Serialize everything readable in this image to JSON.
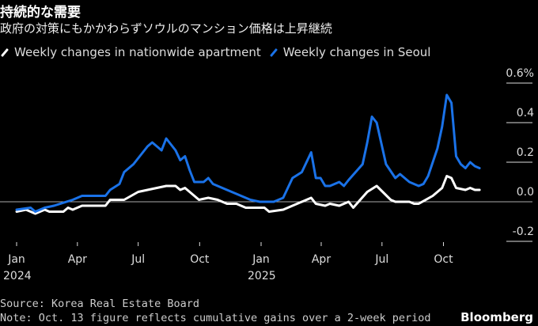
{
  "header": {
    "title": "持続的な需要",
    "subtitle": "政府の対策にもかかわらずソウルのマンション価格は上昇継続"
  },
  "footer": {
    "source": "Source: Korea Real Estate Board",
    "note": "Note: Oct. 13 figure reflects cumulative gains over a 2-week period",
    "brand": "Bloomberg"
  },
  "chart_data": {
    "type": "line",
    "title": "",
    "xlabel": "",
    "ylabel": "",
    "ylim": [
      -0.2,
      0.6
    ],
    "y_ticks": [
      "0.6%",
      "0.4",
      "0.2",
      "0.0",
      "-0.2"
    ],
    "y_tick_values": [
      0.6,
      0.4,
      0.2,
      0.0,
      -0.2
    ],
    "x_ticks": [
      {
        "date": "2024-01-01",
        "label": "Jan",
        "year": "2024"
      },
      {
        "date": "2024-04-01",
        "label": "Apr",
        "year": ""
      },
      {
        "date": "2024-07-01",
        "label": "Jul",
        "year": ""
      },
      {
        "date": "2024-10-01",
        "label": "Oct",
        "year": ""
      },
      {
        "date": "2025-01-01",
        "label": "Jan",
        "year": "2025"
      },
      {
        "date": "2025-04-01",
        "label": "Apr",
        "year": ""
      },
      {
        "date": "2025-07-01",
        "label": "Jul",
        "year": ""
      },
      {
        "date": "2025-10-01",
        "label": "Oct",
        "year": ""
      }
    ],
    "legend_placement": "top-left",
    "grid": false,
    "series": [
      {
        "name": "Weekly changes in nationwide apartment",
        "color": "#ffffff",
        "points": [
          [
            "2024-01-01",
            -0.05
          ],
          [
            "2024-01-15",
            -0.04
          ],
          [
            "2024-01-29",
            -0.06
          ],
          [
            "2024-02-12",
            -0.04
          ],
          [
            "2024-02-19",
            -0.05
          ],
          [
            "2024-03-11",
            -0.05
          ],
          [
            "2024-03-18",
            -0.03
          ],
          [
            "2024-03-25",
            -0.04
          ],
          [
            "2024-04-08",
            -0.02
          ],
          [
            "2024-05-13",
            -0.02
          ],
          [
            "2024-05-20",
            0.01
          ],
          [
            "2024-06-10",
            0.01
          ],
          [
            "2024-07-01",
            0.05
          ],
          [
            "2024-07-29",
            0.07
          ],
          [
            "2024-08-12",
            0.08
          ],
          [
            "2024-08-26",
            0.08
          ],
          [
            "2024-09-02",
            0.06
          ],
          [
            "2024-09-09",
            0.07
          ],
          [
            "2024-09-16",
            0.05
          ],
          [
            "2024-09-30",
            0.01
          ],
          [
            "2024-10-14",
            0.02
          ],
          [
            "2024-10-28",
            0.01
          ],
          [
            "2024-11-11",
            -0.01
          ],
          [
            "2024-11-25",
            -0.01
          ],
          [
            "2024-12-09",
            -0.03
          ],
          [
            "2025-01-06",
            -0.03
          ],
          [
            "2025-01-13",
            -0.05
          ],
          [
            "2025-02-03",
            -0.04
          ],
          [
            "2025-03-10",
            0.01
          ],
          [
            "2025-03-17",
            0.02
          ],
          [
            "2025-03-24",
            -0.01
          ],
          [
            "2025-04-07",
            -0.02
          ],
          [
            "2025-04-14",
            -0.01
          ],
          [
            "2025-04-28",
            -0.02
          ],
          [
            "2025-05-12",
            0.0
          ],
          [
            "2025-05-19",
            -0.03
          ],
          [
            "2025-06-09",
            0.05
          ],
          [
            "2025-06-23",
            0.08
          ],
          [
            "2025-07-14",
            0.01
          ],
          [
            "2025-07-21",
            0.0
          ],
          [
            "2025-08-11",
            0.0
          ],
          [
            "2025-08-18",
            -0.01
          ],
          [
            "2025-08-25",
            -0.01
          ],
          [
            "2025-09-15",
            0.03
          ],
          [
            "2025-09-29",
            0.07
          ],
          [
            "2025-10-06",
            0.13
          ],
          [
            "2025-10-13",
            0.12
          ],
          [
            "2025-10-20",
            0.07
          ],
          [
            "2025-11-03",
            0.06
          ],
          [
            "2025-11-10",
            0.07
          ],
          [
            "2025-11-17",
            0.06
          ],
          [
            "2025-11-24",
            0.06
          ]
        ]
      },
      {
        "name": "Weekly changes in Seoul",
        "color": "#1a72e8",
        "points": [
          [
            "2024-01-01",
            -0.04
          ],
          [
            "2024-01-22",
            -0.03
          ],
          [
            "2024-01-29",
            -0.05
          ],
          [
            "2024-02-12",
            -0.03
          ],
          [
            "2024-02-26",
            -0.02
          ],
          [
            "2024-03-25",
            0.01
          ],
          [
            "2024-04-08",
            0.03
          ],
          [
            "2024-05-13",
            0.03
          ],
          [
            "2024-05-20",
            0.06
          ],
          [
            "2024-06-03",
            0.09
          ],
          [
            "2024-06-10",
            0.15
          ],
          [
            "2024-06-24",
            0.19
          ],
          [
            "2024-07-15",
            0.28
          ],
          [
            "2024-07-22",
            0.3
          ],
          [
            "2024-08-05",
            0.26
          ],
          [
            "2024-08-12",
            0.32
          ],
          [
            "2024-08-26",
            0.26
          ],
          [
            "2024-09-02",
            0.21
          ],
          [
            "2024-09-09",
            0.23
          ],
          [
            "2024-09-16",
            0.16
          ],
          [
            "2024-09-23",
            0.1
          ],
          [
            "2024-10-07",
            0.1
          ],
          [
            "2024-10-14",
            0.12
          ],
          [
            "2024-10-21",
            0.09
          ],
          [
            "2024-11-11",
            0.06
          ],
          [
            "2024-11-25",
            0.04
          ],
          [
            "2024-12-16",
            0.01
          ],
          [
            "2024-12-30",
            0.0
          ],
          [
            "2025-01-20",
            0.0
          ],
          [
            "2025-02-03",
            0.02
          ],
          [
            "2025-02-17",
            0.12
          ],
          [
            "2025-03-03",
            0.15
          ],
          [
            "2025-03-17",
            0.25
          ],
          [
            "2025-03-24",
            0.12
          ],
          [
            "2025-03-31",
            0.12
          ],
          [
            "2025-04-07",
            0.08
          ],
          [
            "2025-04-14",
            0.08
          ],
          [
            "2025-04-28",
            0.1
          ],
          [
            "2025-05-05",
            0.08
          ],
          [
            "2025-05-12",
            0.11
          ],
          [
            "2025-06-02",
            0.19
          ],
          [
            "2025-06-09",
            0.3
          ],
          [
            "2025-06-16",
            0.43
          ],
          [
            "2025-06-23",
            0.4
          ],
          [
            "2025-07-07",
            0.19
          ],
          [
            "2025-07-21",
            0.12
          ],
          [
            "2025-07-28",
            0.14
          ],
          [
            "2025-08-11",
            0.1
          ],
          [
            "2025-08-25",
            0.08
          ],
          [
            "2025-09-01",
            0.09
          ],
          [
            "2025-09-08",
            0.13
          ],
          [
            "2025-09-22",
            0.27
          ],
          [
            "2025-09-29",
            0.38
          ],
          [
            "2025-10-06",
            0.54
          ],
          [
            "2025-10-13",
            0.5
          ],
          [
            "2025-10-20",
            0.23
          ],
          [
            "2025-10-27",
            0.19
          ],
          [
            "2025-11-03",
            0.17
          ],
          [
            "2025-11-10",
            0.2
          ],
          [
            "2025-11-17",
            0.18
          ],
          [
            "2025-11-24",
            0.17
          ]
        ]
      }
    ]
  }
}
